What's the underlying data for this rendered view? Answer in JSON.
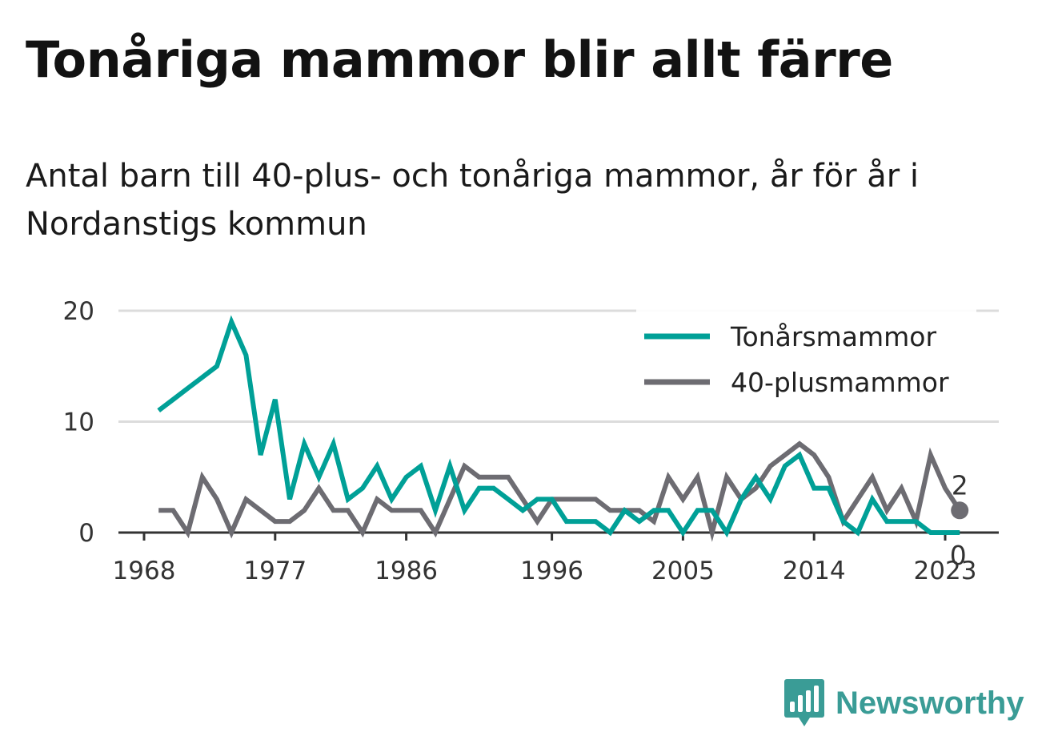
{
  "title": "Tonåriga mammor blir allt färre",
  "subtitle": "Antal barn till 40-plus- och tonåriga mammor, år för år i Nordanstigs kommun",
  "brand": {
    "name": "Newsworthy",
    "icon": "bar-chart-speech-bubble-icon",
    "color": "#3a9c96"
  },
  "chart_data": {
    "type": "line",
    "x_ticks": [
      1968,
      1977,
      1986,
      1996,
      2005,
      2014,
      2023
    ],
    "y_ticks": [
      0,
      10,
      20
    ],
    "xlim": [
      1967,
      2025
    ],
    "ylim": [
      0,
      20
    ],
    "grid": true,
    "legend_position": "top-right",
    "x": [
      1969,
      1970,
      1971,
      1972,
      1973,
      1974,
      1975,
      1976,
      1977,
      1978,
      1979,
      1980,
      1981,
      1982,
      1983,
      1984,
      1985,
      1986,
      1987,
      1988,
      1989,
      1990,
      1991,
      1992,
      1993,
      1994,
      1995,
      1996,
      1997,
      1998,
      1999,
      2000,
      2001,
      2002,
      2003,
      2004,
      2005,
      2006,
      2007,
      2008,
      2009,
      2010,
      2011,
      2012,
      2013,
      2014,
      2015,
      2016,
      2017,
      2018,
      2019,
      2020,
      2021,
      2022,
      2023,
      2024
    ],
    "series": [
      {
        "name": "Tonårsmammor",
        "color": "#00a097",
        "values": [
          11,
          12,
          13,
          14,
          15,
          19,
          16,
          7,
          12,
          3,
          8,
          5,
          8,
          3,
          4,
          6,
          3,
          5,
          6,
          2,
          6,
          2,
          4,
          4,
          3,
          2,
          3,
          3,
          1,
          1,
          1,
          0,
          2,
          1,
          2,
          2,
          0,
          2,
          2,
          0,
          3,
          5,
          3,
          6,
          7,
          4,
          4,
          1,
          0,
          3,
          1,
          1,
          1,
          0,
          0,
          0
        ]
      },
      {
        "name": "40-plusmammor",
        "color": "#6d6c72",
        "values": [
          2,
          2,
          0,
          5,
          3,
          0,
          3,
          2,
          1,
          1,
          2,
          4,
          2,
          2,
          0,
          3,
          2,
          2,
          2,
          0,
          3,
          6,
          5,
          5,
          5,
          3,
          1,
          3,
          3,
          3,
          3,
          2,
          2,
          2,
          1,
          5,
          3,
          5,
          0,
          5,
          3,
          4,
          6,
          7,
          8,
          7,
          5,
          1,
          3,
          5,
          2,
          4,
          1,
          7,
          4,
          2
        ]
      }
    ],
    "end_labels": [
      {
        "series": "40-plusmammor",
        "x": 2024,
        "text": "2"
      },
      {
        "series": "Tonårsmammor",
        "x": 2024,
        "text": "0"
      }
    ]
  }
}
